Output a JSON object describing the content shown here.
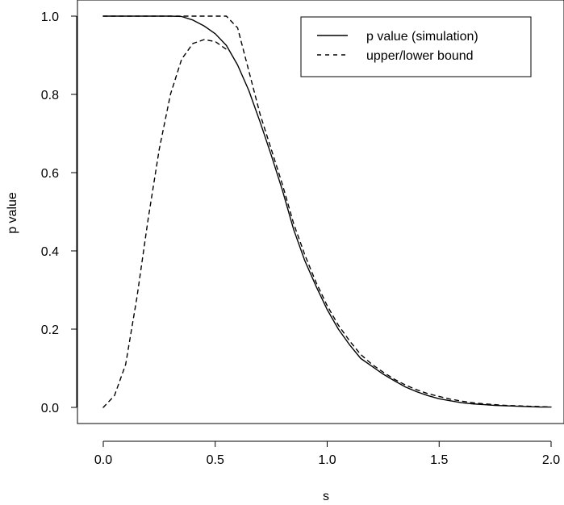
{
  "chart_data": {
    "type": "line",
    "xlabel": "s",
    "ylabel": "p value",
    "xlim": [
      0,
      2
    ],
    "ylim": [
      0,
      1
    ],
    "x_ticks": [
      0.0,
      0.5,
      1.0,
      1.5,
      2.0
    ],
    "x_tick_labels": [
      "0.0",
      "0.5",
      "1.0",
      "1.5",
      "2.0"
    ],
    "y_ticks": [
      0.0,
      0.2,
      0.4,
      0.6,
      0.8,
      1.0
    ],
    "y_tick_labels": [
      "0.0",
      "0.2",
      "0.4",
      "0.6",
      "0.8",
      "1.0"
    ],
    "grid": false,
    "legend": {
      "position": "top-right",
      "entries": [
        {
          "label": "p value (simulation)",
          "style": "solid"
        },
        {
          "label": "upper/lower bound",
          "style": "dashed"
        }
      ]
    },
    "series": [
      {
        "name": "p value (simulation)",
        "style": "solid",
        "x": [
          0.0,
          0.05,
          0.1,
          0.15,
          0.2,
          0.25,
          0.3,
          0.35,
          0.4,
          0.45,
          0.5,
          0.55,
          0.6,
          0.65,
          0.7,
          0.75,
          0.8,
          0.85,
          0.9,
          0.95,
          1.0,
          1.05,
          1.1,
          1.15,
          1.2,
          1.25,
          1.3,
          1.35,
          1.4,
          1.45,
          1.5,
          1.55,
          1.6,
          1.65,
          1.7,
          1.75,
          1.8,
          1.85,
          1.9,
          1.95,
          2.0
        ],
        "y": [
          1.0,
          1.0,
          1.0,
          1.0,
          1.0,
          1.0,
          1.0,
          0.999,
          0.99,
          0.975,
          0.955,
          0.925,
          0.875,
          0.81,
          0.73,
          0.645,
          0.555,
          0.455,
          0.375,
          0.31,
          0.25,
          0.2,
          0.16,
          0.125,
          0.105,
          0.085,
          0.068,
          0.052,
          0.04,
          0.03,
          0.022,
          0.017,
          0.012,
          0.009,
          0.007,
          0.005,
          0.004,
          0.003,
          0.002,
          0.001,
          0.001
        ]
      },
      {
        "name": "upper/lower bound",
        "style": "dashed",
        "segments": [
          {
            "x": [
              0.0,
              0.05,
              0.1,
              0.15,
              0.2,
              0.25,
              0.3,
              0.35,
              0.4,
              0.45,
              0.5,
              0.55,
              0.6,
              0.65,
              0.7,
              0.75,
              0.8,
              0.85,
              0.9,
              0.95,
              1.0,
              1.05,
              1.1,
              1.15,
              1.2,
              1.25,
              1.3,
              1.35,
              1.4,
              1.45,
              1.5,
              1.55,
              1.6,
              1.65,
              1.7,
              1.75,
              1.8,
              1.85,
              1.9,
              1.95,
              2.0
            ],
            "y": [
              1.0,
              1.0,
              1.0,
              1.0,
              1.0,
              1.0,
              1.0,
              1.0,
              1.0,
              1.0,
              1.0,
              1.0,
              0.97,
              0.86,
              0.75,
              0.66,
              0.57,
              0.47,
              0.39,
              0.32,
              0.26,
              0.21,
              0.17,
              0.135,
              0.11,
              0.09,
              0.072,
              0.057,
              0.045,
              0.035,
              0.028,
              0.021,
              0.016,
              0.012,
              0.009,
              0.007,
              0.005,
              0.004,
              0.003,
              0.002,
              0.001
            ]
          },
          {
            "x": [
              0.0,
              0.05,
              0.1,
              0.15,
              0.2,
              0.25,
              0.3,
              0.35,
              0.4,
              0.45,
              0.5,
              0.55
            ],
            "y": [
              0.0,
              0.03,
              0.11,
              0.28,
              0.48,
              0.66,
              0.8,
              0.89,
              0.93,
              0.94,
              0.935,
              0.915
            ]
          }
        ]
      }
    ]
  }
}
